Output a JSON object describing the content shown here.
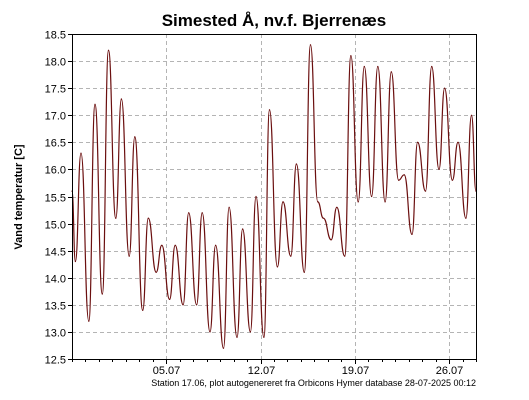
{
  "chart_data": {
    "type": "line",
    "title": "Simested Å, nv.f. Bjerrenæs",
    "ylabel": "Vand temperatur [C]",
    "xlabel": "",
    "footer": "Station 17.06, plot autogenereret fra Orbicons Hymer database 28-07-2025 00:12",
    "ylim": [
      12.5,
      18.5
    ],
    "yticks": [
      12.5,
      13.0,
      13.5,
      14.0,
      14.5,
      15.0,
      15.5,
      16.0,
      16.5,
      17.0,
      17.5,
      18.0,
      18.5
    ],
    "xlim": [
      "2025-06-28T00:00",
      "2025-07-28T00:00"
    ],
    "xticks": [
      {
        "date": "2025-07-05",
        "label": "05.07"
      },
      {
        "date": "2025-07-12",
        "label": "12.07"
      },
      {
        "date": "2025-07-19",
        "label": "19.07"
      },
      {
        "date": "2025-07-26",
        "label": "26.07"
      }
    ],
    "grid": true,
    "series": [
      {
        "name": "",
        "color": "#6b0f0f",
        "points": [
          [
            "2025-06-28T00:00",
            15.6
          ],
          [
            "2025-06-28T06:00",
            14.3
          ],
          [
            "2025-06-28T16:00",
            16.3
          ],
          [
            "2025-06-29T06:00",
            13.2
          ],
          [
            "2025-06-29T17:00",
            17.2
          ],
          [
            "2025-06-30T06:00",
            13.7
          ],
          [
            "2025-06-30T17:00",
            18.2
          ],
          [
            "2025-07-01T06:00",
            15.1
          ],
          [
            "2025-07-01T16:00",
            17.3
          ],
          [
            "2025-07-02T06:00",
            14.4
          ],
          [
            "2025-07-02T16:00",
            16.6
          ],
          [
            "2025-07-03T06:00",
            13.4
          ],
          [
            "2025-07-03T16:00",
            15.1
          ],
          [
            "2025-07-04T06:00",
            14.1
          ],
          [
            "2025-07-04T16:00",
            14.6
          ],
          [
            "2025-07-05T06:00",
            13.6
          ],
          [
            "2025-07-05T16:00",
            14.6
          ],
          [
            "2025-07-06T06:00",
            13.5
          ],
          [
            "2025-07-06T16:00",
            15.2
          ],
          [
            "2025-07-07T06:00",
            13.5
          ],
          [
            "2025-07-07T16:00",
            15.2
          ],
          [
            "2025-07-08T06:00",
            13.0
          ],
          [
            "2025-07-08T16:00",
            14.6
          ],
          [
            "2025-07-09T06:00",
            12.7
          ],
          [
            "2025-07-09T16:00",
            15.3
          ],
          [
            "2025-07-10T06:00",
            12.9
          ],
          [
            "2025-07-10T16:00",
            14.9
          ],
          [
            "2025-07-11T06:00",
            13.0
          ],
          [
            "2025-07-11T16:00",
            15.5
          ],
          [
            "2025-07-12T06:00",
            12.9
          ],
          [
            "2025-07-12T16:00",
            17.1
          ],
          [
            "2025-07-13T06:00",
            14.2
          ],
          [
            "2025-07-13T16:00",
            15.4
          ],
          [
            "2025-07-14T06:00",
            14.4
          ],
          [
            "2025-07-14T16:00",
            16.1
          ],
          [
            "2025-07-15T06:00",
            14.1
          ],
          [
            "2025-07-15T17:00",
            18.3
          ],
          [
            "2025-07-16T06:00",
            15.4
          ],
          [
            "2025-07-16T16:00",
            15.1
          ],
          [
            "2025-07-17T06:00",
            14.7
          ],
          [
            "2025-07-17T16:00",
            15.3
          ],
          [
            "2025-07-18T06:00",
            14.4
          ],
          [
            "2025-07-18T17:00",
            18.1
          ],
          [
            "2025-07-19T06:00",
            15.4
          ],
          [
            "2025-07-19T17:00",
            17.9
          ],
          [
            "2025-07-20T06:00",
            15.5
          ],
          [
            "2025-07-20T17:00",
            17.9
          ],
          [
            "2025-07-21T06:00",
            15.4
          ],
          [
            "2025-07-21T17:00",
            17.8
          ],
          [
            "2025-07-22T06:00",
            15.8
          ],
          [
            "2025-07-22T16:00",
            15.9
          ],
          [
            "2025-07-23T06:00",
            14.8
          ],
          [
            "2025-07-23T16:00",
            16.5
          ],
          [
            "2025-07-24T06:00",
            15.6
          ],
          [
            "2025-07-24T17:00",
            17.9
          ],
          [
            "2025-07-25T06:00",
            16.0
          ],
          [
            "2025-07-25T16:00",
            17.5
          ],
          [
            "2025-07-26T06:00",
            15.8
          ],
          [
            "2025-07-26T16:00",
            16.5
          ],
          [
            "2025-07-27T06:00",
            15.1
          ],
          [
            "2025-07-27T16:00",
            17.0
          ],
          [
            "2025-07-28T00:00",
            15.6
          ]
        ]
      }
    ]
  }
}
